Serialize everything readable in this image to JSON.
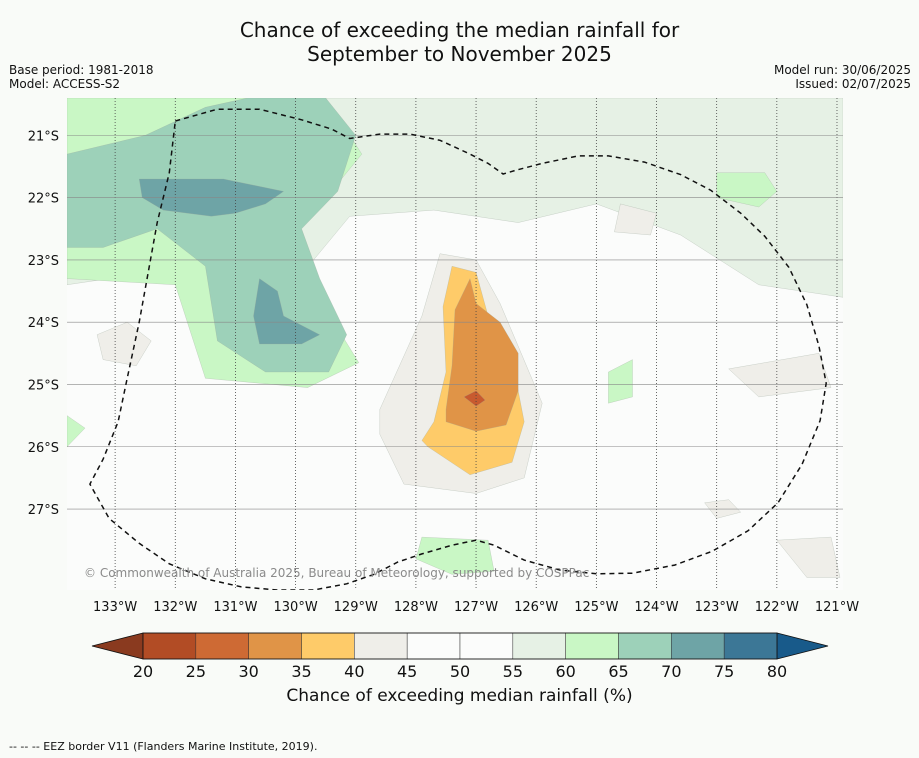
{
  "title": {
    "line1": "Chance of exceeding the median rainfall for",
    "line2": "September to November 2025"
  },
  "meta_left": {
    "base_period": "Base period: 1981-2018",
    "model": "Model: ACCESS-S2"
  },
  "meta_right": {
    "model_run": "Model run: 30/06/2025",
    "issued": "Issued: 02/07/2025"
  },
  "map": {
    "lon_range": [
      -133.8,
      -120.9
    ],
    "lat_range": [
      -28.3,
      -20.4
    ],
    "lon_ticks": [
      {
        "value": -133,
        "label": "133°W"
      },
      {
        "value": -132,
        "label": "132°W"
      },
      {
        "value": -131,
        "label": "131°W"
      },
      {
        "value": -130,
        "label": "130°W"
      },
      {
        "value": -129,
        "label": "129°W"
      },
      {
        "value": -128,
        "label": "128°W"
      },
      {
        "value": -127,
        "label": "127°W"
      },
      {
        "value": -126,
        "label": "126°W"
      },
      {
        "value": -125,
        "label": "125°W"
      },
      {
        "value": -124,
        "label": "124°W"
      },
      {
        "value": -123,
        "label": "123°W"
      },
      {
        "value": -122,
        "label": "122°W"
      },
      {
        "value": -121,
        "label": "121°W"
      }
    ],
    "lat_ticks": [
      {
        "value": -21,
        "label": "21°S"
      },
      {
        "value": -22,
        "label": "22°S"
      },
      {
        "value": -23,
        "label": "23°S"
      },
      {
        "value": -24,
        "label": "24°S"
      },
      {
        "value": -25,
        "label": "25°S"
      },
      {
        "value": -26,
        "label": "26°S"
      },
      {
        "value": -27,
        "label": "27°S"
      }
    ],
    "copyright": "© Commonwealth of Australia 2025, Bureau of Meteorology, supported by COSPPac",
    "background_color": "#fbfcfb",
    "eez_border": [
      [
        -132.0,
        -20.77
      ],
      [
        -131.3,
        -20.58
      ],
      [
        -130.6,
        -20.58
      ],
      [
        -129.9,
        -20.75
      ],
      [
        -129.4,
        -20.9
      ],
      [
        -129.1,
        -21.05
      ],
      [
        -128.6,
        -20.98
      ],
      [
        -128.1,
        -20.98
      ],
      [
        -127.6,
        -21.08
      ],
      [
        -127.1,
        -21.3
      ],
      [
        -126.8,
        -21.45
      ],
      [
        -126.55,
        -21.62
      ],
      [
        -126.3,
        -21.55
      ],
      [
        -125.9,
        -21.45
      ],
      [
        -125.3,
        -21.33
      ],
      [
        -124.8,
        -21.33
      ],
      [
        -124.2,
        -21.43
      ],
      [
        -123.6,
        -21.63
      ],
      [
        -123.1,
        -21.88
      ],
      [
        -122.6,
        -22.25
      ],
      [
        -122.2,
        -22.62
      ],
      [
        -121.8,
        -23.12
      ],
      [
        -121.5,
        -23.72
      ],
      [
        -121.3,
        -24.38
      ],
      [
        -121.18,
        -24.98
      ],
      [
        -121.28,
        -25.58
      ],
      [
        -121.58,
        -26.28
      ],
      [
        -121.98,
        -26.9
      ],
      [
        -122.48,
        -27.35
      ],
      [
        -123.08,
        -27.68
      ],
      [
        -123.7,
        -27.9
      ],
      [
        -124.4,
        -28.03
      ],
      [
        -125.0,
        -28.04
      ],
      [
        -125.6,
        -27.98
      ],
      [
        -126.2,
        -27.82
      ],
      [
        -126.7,
        -27.58
      ],
      [
        -127.0,
        -27.5
      ],
      [
        -127.4,
        -27.58
      ],
      [
        -127.9,
        -27.72
      ],
      [
        -128.3,
        -27.85
      ],
      [
        -128.7,
        -28.05
      ],
      [
        -129.15,
        -28.2
      ],
      [
        -129.7,
        -28.3
      ],
      [
        -130.3,
        -28.3
      ],
      [
        -130.9,
        -28.25
      ],
      [
        -131.5,
        -28.12
      ],
      [
        -132.1,
        -27.88
      ],
      [
        -132.6,
        -27.55
      ],
      [
        -133.1,
        -27.15
      ],
      [
        -133.42,
        -26.6
      ],
      [
        -133.2,
        -26.2
      ],
      [
        -132.95,
        -25.6
      ],
      [
        -132.8,
        -24.9
      ],
      [
        -132.6,
        -24.0
      ],
      [
        -132.45,
        -23.2
      ],
      [
        -132.3,
        -22.4
      ],
      [
        -132.1,
        -21.6
      ],
      [
        -132.0,
        -20.77
      ]
    ],
    "regions": [
      {
        "category": "55-60",
        "color": "#e6f1e5",
        "points": [
          [
            -133.8,
            -20.4
          ],
          [
            -120.9,
            -20.4
          ],
          [
            -120.9,
            -23.6
          ],
          [
            -122.3,
            -23.4
          ],
          [
            -123.6,
            -22.6
          ],
          [
            -125.0,
            -22.1
          ],
          [
            -126.3,
            -22.4
          ],
          [
            -127.7,
            -22.2
          ],
          [
            -129.1,
            -22.3
          ],
          [
            -130.3,
            -23.7
          ],
          [
            -131.7,
            -23.1
          ],
          [
            -133.8,
            -23.4
          ]
        ]
      },
      {
        "category": "60-65",
        "color": "#c9f7c5",
        "points": [
          [
            -133.8,
            -20.4
          ],
          [
            -129.5,
            -20.4
          ],
          [
            -128.9,
            -21.3
          ],
          [
            -130.0,
            -22.6
          ],
          [
            -129.3,
            -24.1
          ],
          [
            -128.95,
            -24.65
          ],
          [
            -129.8,
            -25.05
          ],
          [
            -131.5,
            -24.9
          ],
          [
            -132.0,
            -23.4
          ],
          [
            -133.8,
            -23.3
          ]
        ]
      },
      {
        "category": "65-70",
        "color": "#9dd1b9",
        "points": [
          [
            -133.8,
            -21.3
          ],
          [
            -132.5,
            -21.0
          ],
          [
            -131.5,
            -20.55
          ],
          [
            -130.8,
            -20.4
          ],
          [
            -129.5,
            -20.4
          ],
          [
            -129.0,
            -21.0
          ],
          [
            -129.3,
            -21.9
          ],
          [
            -129.9,
            -22.5
          ],
          [
            -129.6,
            -23.3
          ],
          [
            -129.15,
            -24.2
          ],
          [
            -129.45,
            -24.8
          ],
          [
            -130.5,
            -24.8
          ],
          [
            -131.3,
            -24.3
          ],
          [
            -131.5,
            -23.1
          ],
          [
            -132.3,
            -22.5
          ],
          [
            -133.2,
            -22.8
          ],
          [
            -133.8,
            -22.8
          ]
        ]
      },
      {
        "category": "70-75",
        "color": "#6ea4a6",
        "points": [
          [
            -132.6,
            -21.7
          ],
          [
            -131.2,
            -21.7
          ],
          [
            -130.2,
            -21.9
          ],
          [
            -130.5,
            -22.1
          ],
          [
            -131.0,
            -22.25
          ],
          [
            -131.4,
            -22.3
          ],
          [
            -132.2,
            -22.2
          ],
          [
            -132.55,
            -22.0
          ]
        ]
      },
      {
        "category": "70-75",
        "color": "#6ea4a6",
        "points": [
          [
            -130.6,
            -23.3
          ],
          [
            -130.3,
            -23.5
          ],
          [
            -130.2,
            -23.9
          ],
          [
            -129.6,
            -24.2
          ],
          [
            -129.9,
            -24.35
          ],
          [
            -130.6,
            -24.35
          ],
          [
            -130.7,
            -23.9
          ]
        ]
      },
      {
        "category": "60-65",
        "color": "#c9f7c5",
        "points": [
          [
            -123.0,
            -21.6
          ],
          [
            -122.2,
            -21.6
          ],
          [
            -122.0,
            -21.9
          ],
          [
            -122.3,
            -22.15
          ],
          [
            -123.0,
            -22.0
          ]
        ]
      },
      {
        "category": "60-65",
        "color": "#c9f7c5",
        "points": [
          [
            -127.9,
            -27.45
          ],
          [
            -126.8,
            -27.5
          ],
          [
            -126.7,
            -28.0
          ],
          [
            -127.4,
            -28.05
          ],
          [
            -128.0,
            -27.8
          ]
        ]
      },
      {
        "category": "40-45",
        "color": "#efeee9",
        "points": [
          [
            -128.6,
            -25.4
          ],
          [
            -128.6,
            -25.8
          ],
          [
            -128.2,
            -26.6
          ],
          [
            -127.0,
            -26.75
          ],
          [
            -126.2,
            -26.5
          ],
          [
            -125.9,
            -25.3
          ],
          [
            -126.25,
            -24.5
          ],
          [
            -126.6,
            -23.7
          ],
          [
            -127.0,
            -23.0
          ],
          [
            -127.6,
            -22.9
          ],
          [
            -127.9,
            -23.9
          ]
        ]
      },
      {
        "category": "35-40",
        "color": "#fecb69",
        "points": [
          [
            -127.8,
            -26.0
          ],
          [
            -127.1,
            -26.45
          ],
          [
            -126.4,
            -26.25
          ],
          [
            -126.2,
            -25.6
          ],
          [
            -126.4,
            -24.6
          ],
          [
            -126.8,
            -23.9
          ],
          [
            -127.0,
            -23.2
          ],
          [
            -127.4,
            -23.1
          ],
          [
            -127.55,
            -23.75
          ],
          [
            -127.5,
            -24.8
          ],
          [
            -127.7,
            -25.6
          ],
          [
            -127.9,
            -25.9
          ]
        ]
      },
      {
        "category": "30-35",
        "color": "#e09447",
        "points": [
          [
            -127.5,
            -25.6
          ],
          [
            -127.0,
            -25.75
          ],
          [
            -126.5,
            -25.65
          ],
          [
            -126.3,
            -25.1
          ],
          [
            -126.3,
            -24.5
          ],
          [
            -126.6,
            -24.0
          ],
          [
            -127.0,
            -23.7
          ],
          [
            -127.1,
            -23.3
          ],
          [
            -127.35,
            -23.8
          ],
          [
            -127.4,
            -24.7
          ],
          [
            -127.5,
            -25.4
          ]
        ]
      },
      {
        "category": "25-30",
        "color": "#c85a2f",
        "points": [
          [
            -127.2,
            -25.2
          ],
          [
            -127.0,
            -25.1
          ],
          [
            -126.85,
            -25.25
          ],
          [
            -127.0,
            -25.35
          ]
        ]
      },
      {
        "category": "40-45",
        "color": "#efeee9",
        "points": [
          [
            -124.6,
            -22.1
          ],
          [
            -124.0,
            -22.25
          ],
          [
            -124.1,
            -22.6
          ],
          [
            -124.7,
            -22.55
          ]
        ]
      },
      {
        "category": "40-45",
        "color": "#efeee9",
        "points": [
          [
            -133.3,
            -24.2
          ],
          [
            -132.8,
            -24.0
          ],
          [
            -132.4,
            -24.3
          ],
          [
            -132.65,
            -24.7
          ],
          [
            -133.2,
            -24.6
          ]
        ]
      },
      {
        "category": "40-45",
        "color": "#efeee9",
        "points": [
          [
            -122.8,
            -24.75
          ],
          [
            -121.3,
            -24.5
          ],
          [
            -121.1,
            -25.05
          ],
          [
            -122.3,
            -25.2
          ]
        ]
      },
      {
        "category": "40-45",
        "color": "#efeee9",
        "points": [
          [
            -122.0,
            -27.5
          ],
          [
            -121.1,
            -27.45
          ],
          [
            -120.95,
            -28.1
          ],
          [
            -121.5,
            -28.1
          ]
        ]
      },
      {
        "category": "40-45",
        "color": "#efeee9",
        "points": [
          [
            -123.2,
            -26.9
          ],
          [
            -122.8,
            -26.85
          ],
          [
            -122.6,
            -27.05
          ],
          [
            -123.0,
            -27.15
          ]
        ]
      },
      {
        "category": "60-65",
        "color": "#c9f7c5",
        "points": [
          [
            -124.8,
            -24.8
          ],
          [
            -124.4,
            -24.6
          ],
          [
            -124.4,
            -25.2
          ],
          [
            -124.8,
            -25.3
          ]
        ]
      },
      {
        "category": "60-65",
        "color": "#c9f7c5",
        "points": [
          [
            -133.8,
            -25.5
          ],
          [
            -133.5,
            -25.7
          ],
          [
            -133.8,
            -26.0
          ]
        ]
      }
    ]
  },
  "colorbar": {
    "label": "Chance of exceeding median rainfall (%)",
    "ticks": [
      "20",
      "25",
      "30",
      "35",
      "40",
      "45",
      "50",
      "55",
      "60",
      "65",
      "70",
      "75",
      "80"
    ],
    "colors": [
      "#b24c25",
      "#ce6a34",
      "#e09447",
      "#fecb69",
      "#efeee9",
      "#fbfcfb",
      "#fbfcfb",
      "#e6f1e5",
      "#c9f7c5",
      "#9dd1b9",
      "#6ea4a6",
      "#3c7796"
    ],
    "under_color": "#8a3a1f",
    "over_color": "#185a8a"
  },
  "footer": {
    "eez_legend": "--  --  -- EEZ border V11 (Flanders Marine Institute, 2019)."
  }
}
